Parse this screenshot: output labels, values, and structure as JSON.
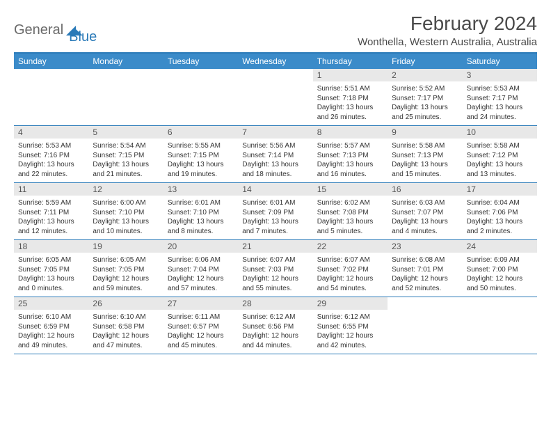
{
  "logo": {
    "text1": "General",
    "text2": "Blue"
  },
  "title": "February 2024",
  "location": "Wonthella, Western Australia, Australia",
  "colors": {
    "header_bg": "#3b8bc9",
    "accent": "#2a7ab8",
    "daynum_bg": "#e8e8e8",
    "text": "#333333",
    "title_text": "#4a4a4a",
    "logo_gray": "#6a6a6a"
  },
  "day_labels": [
    "Sunday",
    "Monday",
    "Tuesday",
    "Wednesday",
    "Thursday",
    "Friday",
    "Saturday"
  ],
  "weeks": [
    [
      null,
      null,
      null,
      null,
      {
        "d": "1",
        "sr": "Sunrise: 5:51 AM",
        "ss": "Sunset: 7:18 PM",
        "dl": "Daylight: 13 hours and 26 minutes."
      },
      {
        "d": "2",
        "sr": "Sunrise: 5:52 AM",
        "ss": "Sunset: 7:17 PM",
        "dl": "Daylight: 13 hours and 25 minutes."
      },
      {
        "d": "3",
        "sr": "Sunrise: 5:53 AM",
        "ss": "Sunset: 7:17 PM",
        "dl": "Daylight: 13 hours and 24 minutes."
      }
    ],
    [
      {
        "d": "4",
        "sr": "Sunrise: 5:53 AM",
        "ss": "Sunset: 7:16 PM",
        "dl": "Daylight: 13 hours and 22 minutes."
      },
      {
        "d": "5",
        "sr": "Sunrise: 5:54 AM",
        "ss": "Sunset: 7:15 PM",
        "dl": "Daylight: 13 hours and 21 minutes."
      },
      {
        "d": "6",
        "sr": "Sunrise: 5:55 AM",
        "ss": "Sunset: 7:15 PM",
        "dl": "Daylight: 13 hours and 19 minutes."
      },
      {
        "d": "7",
        "sr": "Sunrise: 5:56 AM",
        "ss": "Sunset: 7:14 PM",
        "dl": "Daylight: 13 hours and 18 minutes."
      },
      {
        "d": "8",
        "sr": "Sunrise: 5:57 AM",
        "ss": "Sunset: 7:13 PM",
        "dl": "Daylight: 13 hours and 16 minutes."
      },
      {
        "d": "9",
        "sr": "Sunrise: 5:58 AM",
        "ss": "Sunset: 7:13 PM",
        "dl": "Daylight: 13 hours and 15 minutes."
      },
      {
        "d": "10",
        "sr": "Sunrise: 5:58 AM",
        "ss": "Sunset: 7:12 PM",
        "dl": "Daylight: 13 hours and 13 minutes."
      }
    ],
    [
      {
        "d": "11",
        "sr": "Sunrise: 5:59 AM",
        "ss": "Sunset: 7:11 PM",
        "dl": "Daylight: 13 hours and 12 minutes."
      },
      {
        "d": "12",
        "sr": "Sunrise: 6:00 AM",
        "ss": "Sunset: 7:10 PM",
        "dl": "Daylight: 13 hours and 10 minutes."
      },
      {
        "d": "13",
        "sr": "Sunrise: 6:01 AM",
        "ss": "Sunset: 7:10 PM",
        "dl": "Daylight: 13 hours and 8 minutes."
      },
      {
        "d": "14",
        "sr": "Sunrise: 6:01 AM",
        "ss": "Sunset: 7:09 PM",
        "dl": "Daylight: 13 hours and 7 minutes."
      },
      {
        "d": "15",
        "sr": "Sunrise: 6:02 AM",
        "ss": "Sunset: 7:08 PM",
        "dl": "Daylight: 13 hours and 5 minutes."
      },
      {
        "d": "16",
        "sr": "Sunrise: 6:03 AM",
        "ss": "Sunset: 7:07 PM",
        "dl": "Daylight: 13 hours and 4 minutes."
      },
      {
        "d": "17",
        "sr": "Sunrise: 6:04 AM",
        "ss": "Sunset: 7:06 PM",
        "dl": "Daylight: 13 hours and 2 minutes."
      }
    ],
    [
      {
        "d": "18",
        "sr": "Sunrise: 6:05 AM",
        "ss": "Sunset: 7:05 PM",
        "dl": "Daylight: 13 hours and 0 minutes."
      },
      {
        "d": "19",
        "sr": "Sunrise: 6:05 AM",
        "ss": "Sunset: 7:05 PM",
        "dl": "Daylight: 12 hours and 59 minutes."
      },
      {
        "d": "20",
        "sr": "Sunrise: 6:06 AM",
        "ss": "Sunset: 7:04 PM",
        "dl": "Daylight: 12 hours and 57 minutes."
      },
      {
        "d": "21",
        "sr": "Sunrise: 6:07 AM",
        "ss": "Sunset: 7:03 PM",
        "dl": "Daylight: 12 hours and 55 minutes."
      },
      {
        "d": "22",
        "sr": "Sunrise: 6:07 AM",
        "ss": "Sunset: 7:02 PM",
        "dl": "Daylight: 12 hours and 54 minutes."
      },
      {
        "d": "23",
        "sr": "Sunrise: 6:08 AM",
        "ss": "Sunset: 7:01 PM",
        "dl": "Daylight: 12 hours and 52 minutes."
      },
      {
        "d": "24",
        "sr": "Sunrise: 6:09 AM",
        "ss": "Sunset: 7:00 PM",
        "dl": "Daylight: 12 hours and 50 minutes."
      }
    ],
    [
      {
        "d": "25",
        "sr": "Sunrise: 6:10 AM",
        "ss": "Sunset: 6:59 PM",
        "dl": "Daylight: 12 hours and 49 minutes."
      },
      {
        "d": "26",
        "sr": "Sunrise: 6:10 AM",
        "ss": "Sunset: 6:58 PM",
        "dl": "Daylight: 12 hours and 47 minutes."
      },
      {
        "d": "27",
        "sr": "Sunrise: 6:11 AM",
        "ss": "Sunset: 6:57 PM",
        "dl": "Daylight: 12 hours and 45 minutes."
      },
      {
        "d": "28",
        "sr": "Sunrise: 6:12 AM",
        "ss": "Sunset: 6:56 PM",
        "dl": "Daylight: 12 hours and 44 minutes."
      },
      {
        "d": "29",
        "sr": "Sunrise: 6:12 AM",
        "ss": "Sunset: 6:55 PM",
        "dl": "Daylight: 12 hours and 42 minutes."
      },
      null,
      null
    ]
  ]
}
